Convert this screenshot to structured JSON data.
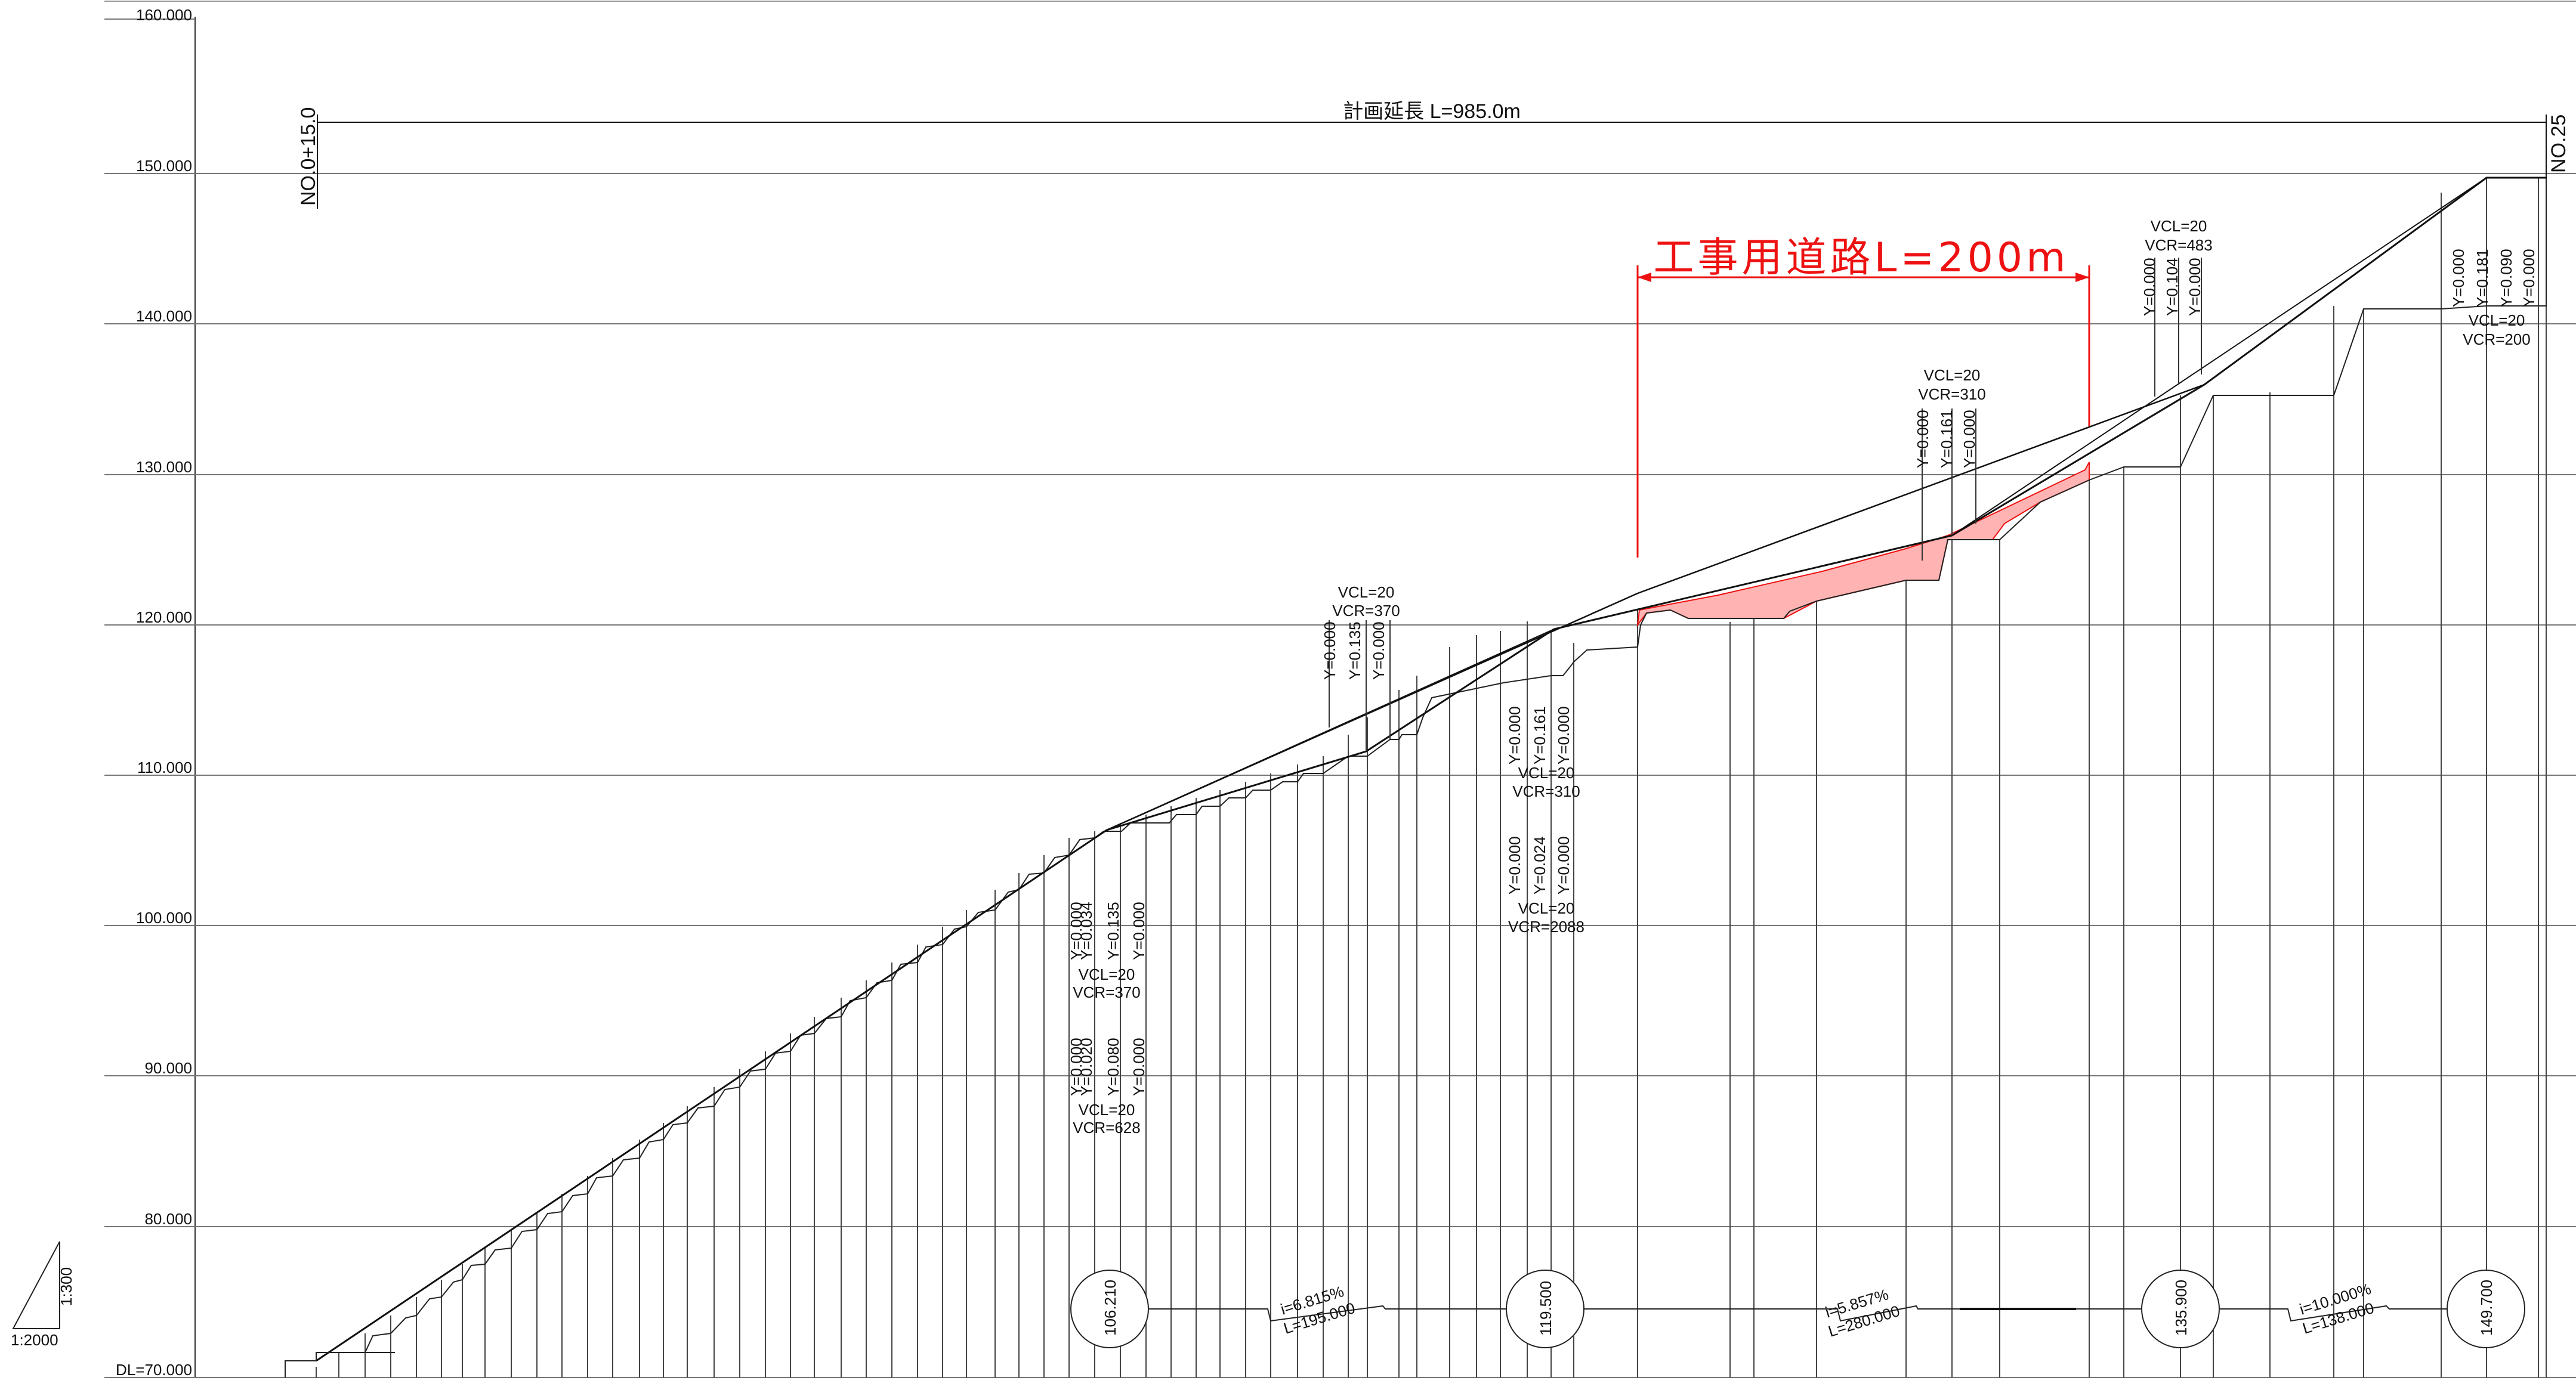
{
  "drawing": {
    "title_span": "計画延長 L=985.0m",
    "work_road": "工事用道路L=200m",
    "start_station": "NO.0+15.0",
    "end_station": "NO.25",
    "datum": "DL=70.000",
    "scale_h": "1:2000",
    "scale_v": "1:300"
  },
  "elevation_axis": {
    "labels": [
      "160.000",
      "150.000",
      "140.000",
      "130.000",
      "120.000",
      "110.000",
      "100.000",
      "90.000",
      "80.000"
    ]
  },
  "profile_points": [
    {
      "dist": 0,
      "elev": 70.5
    },
    {
      "dist": 195,
      "elev": 106.21
    },
    {
      "dist": 280,
      "elev": 111.3
    },
    {
      "dist": 390,
      "elev": 119.5
    },
    {
      "dist": 670,
      "elev": 125.9
    },
    {
      "dist": 820,
      "elev": 135.9
    },
    {
      "dist": 985,
      "elev": 149.7
    }
  ],
  "pvi_circles": [
    {
      "label": "106.210"
    },
    {
      "label": "119.500"
    },
    {
      "label": "135.900"
    },
    {
      "label": "149.700"
    }
  ],
  "grade_labels": [
    {
      "i": "i=6.815%",
      "L": "L=195.000"
    },
    {
      "i": "i=5.857%",
      "L": "L=280.000"
    },
    {
      "i": "i=10.000%",
      "L": "L=138.000"
    }
  ],
  "curves": [
    {
      "vcl": "VCL=20",
      "vcr": "VCR=628",
      "y": [
        "Y=0.000",
        "Y=0.020",
        "Y=0.080",
        "Y=0.000"
      ]
    },
    {
      "vcl": "VCL=20",
      "vcr": "VCR=370",
      "y": [
        "Y=0.000",
        "Y=0.034",
        "Y=0.135",
        "Y=0.000"
      ]
    },
    {
      "vcl": "VCL=20",
      "vcr": "VCR=370",
      "y": [
        "Y=0.000",
        "Y=0.135",
        "Y=0.000"
      ]
    },
    {
      "vcl": "VCL=20",
      "vcr": "VCR=310",
      "y": [
        "Y=0.000",
        "Y=0.161",
        "Y=0.000"
      ]
    },
    {
      "vcl": "VCL=20",
      "vcr": "VCR=2088",
      "y": [
        "Y=0.000",
        "Y=0.024",
        "Y=0.000"
      ]
    },
    {
      "vcl": "VCL=20",
      "vcr": "VCR=310",
      "y": [
        "Y=0.000",
        "Y=0.161",
        "Y=0.000"
      ]
    },
    {
      "vcl": "VCL=20",
      "vcr": "VCR=483",
      "y": [
        "Y=0.000",
        "Y=0.104",
        "Y=0.000"
      ]
    },
    {
      "vcl": "VCL=20",
      "vcr": "VCR=200",
      "y": [
        "Y=0.000",
        "Y=0.181",
        "Y=0.090",
        "Y=0.000"
      ]
    }
  ],
  "colors": {
    "line": "#111111",
    "grid": "#777777",
    "accent": "#ee1111",
    "fill": "#ffb3b3"
  }
}
